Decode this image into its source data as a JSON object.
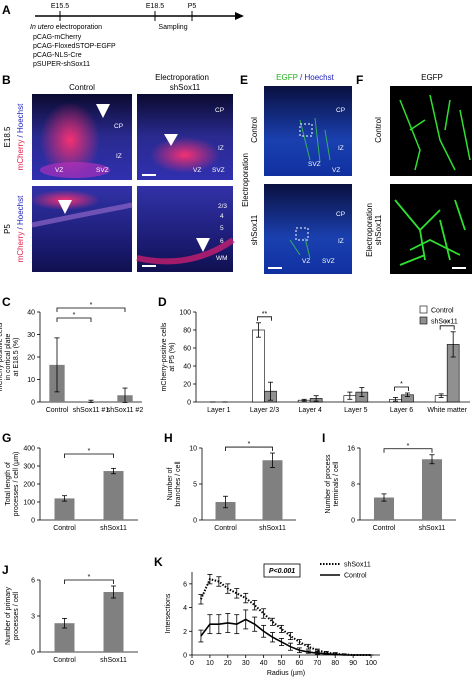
{
  "figure": {
    "panel_a": {
      "label": "A",
      "timepoints": [
        "E15.5",
        "E18.5",
        "P5"
      ],
      "sampling": "Sampling",
      "method_italic": "In utero",
      "method": "electroporation",
      "plasmids": [
        "pCAG-mCherry",
        "pCAG-FloxedSTOP-EGFP",
        "pCAG-NLS-Cre",
        "pSUPER-shSox11"
      ]
    },
    "panel_b": {
      "label": "B",
      "header": "Electroporation",
      "columns": [
        "Control",
        "shSox11"
      ],
      "rows": [
        "E18.5",
        "P5"
      ],
      "stain": [
        "mCherry",
        "/ Hoechst"
      ],
      "regions": [
        "CP",
        "IZ",
        "SVZ",
        "VZ"
      ],
      "layers": [
        "2/3",
        "4",
        "5",
        "6",
        "WM"
      ]
    },
    "panel_e": {
      "label": "E",
      "stain": [
        "EGFP",
        "/ Hoechst"
      ],
      "side": "Electroporation",
      "rows": [
        "Control",
        "shSox11"
      ],
      "regions": [
        "CP",
        "IZ",
        "SVZ",
        "VZ"
      ]
    },
    "panel_f": {
      "label": "F",
      "stain": "EGFP",
      "side": "Electroporation",
      "rows": [
        "Control",
        "shSox11"
      ]
    }
  },
  "chart_data": [
    {
      "type": "bar",
      "panel": "C",
      "ylabel": [
        "mCherry-positive cells",
        "in cortical plate",
        "at E18.5 (%)"
      ],
      "categories": [
        "Control",
        "shSox11 #1",
        "shSox11 #2"
      ],
      "values": [
        16.5,
        0.3,
        3
      ],
      "errors": [
        12,
        0.5,
        3.2
      ],
      "color": "#808080",
      "ylim": [
        0,
        40
      ],
      "yticks": [
        0,
        10,
        20,
        30,
        40
      ],
      "significance": [
        {
          "from": 0,
          "to": 1,
          "label": "*"
        },
        {
          "from": 0,
          "to": 2,
          "label": "*"
        }
      ]
    },
    {
      "type": "bar",
      "panel": "D",
      "ylabel": [
        "mCherry-positive cells",
        "at P5 (%)"
      ],
      "categories": [
        "Layer 1",
        "Layer 2/3",
        "Layer 4",
        "Layer 5",
        "Layer 6",
        "White matter"
      ],
      "series": [
        {
          "name": "Control",
          "color": "#ffffff",
          "values": [
            0,
            80,
            2,
            7,
            3,
            7
          ],
          "errors": [
            0,
            8,
            1,
            4,
            2,
            2
          ]
        },
        {
          "name": "shSox11",
          "color": "#909090",
          "values": [
            0,
            12,
            4,
            11,
            8,
            64
          ],
          "errors": [
            0,
            10,
            3,
            5,
            2,
            14
          ]
        }
      ],
      "ylim": [
        0,
        100
      ],
      "yticks": [
        0,
        20,
        40,
        60,
        80,
        100
      ],
      "significance": [
        {
          "from": 1,
          "to": 1,
          "label": "**"
        },
        {
          "from": 4,
          "to": 4,
          "label": "*"
        },
        {
          "from": 5,
          "to": 5,
          "label": "**"
        }
      ]
    },
    {
      "type": "bar",
      "panel": "G",
      "ylabel": [
        "Total length of",
        "processes / cell (µm)"
      ],
      "categories": [
        "Control",
        "shSox11"
      ],
      "values": [
        120,
        272
      ],
      "errors": [
        15,
        15
      ],
      "color": "#808080",
      "ylim": [
        0,
        400
      ],
      "yticks": [
        0,
        100,
        200,
        300,
        400
      ],
      "significance": [
        {
          "from": 0,
          "to": 1,
          "label": "*"
        }
      ]
    },
    {
      "type": "bar",
      "panel": "H",
      "ylabel": [
        "Number of",
        "branches / cell"
      ],
      "categories": [
        "Control",
        "shSox11"
      ],
      "values": [
        2.5,
        8.3
      ],
      "errors": [
        0.8,
        1.0
      ],
      "color": "#808080",
      "ylim": [
        0,
        10
      ],
      "yticks": [
        0,
        5,
        10
      ],
      "significance": [
        {
          "from": 0,
          "to": 1,
          "label": "*"
        }
      ]
    },
    {
      "type": "bar",
      "panel": "I",
      "ylabel": [
        "Number of process",
        "terminals / cell"
      ],
      "categories": [
        "Control",
        "shSox11"
      ],
      "values": [
        5,
        13.5
      ],
      "errors": [
        0.8,
        1.0
      ],
      "color": "#808080",
      "ylim": [
        0,
        16
      ],
      "yticks": [
        0,
        8,
        16
      ],
      "significance": [
        {
          "from": 0,
          "to": 1,
          "label": "*"
        }
      ]
    },
    {
      "type": "bar",
      "panel": "J",
      "ylabel": [
        "Number of primary",
        "processes / cell"
      ],
      "categories": [
        "Control",
        "shSox11"
      ],
      "values": [
        2.4,
        5.0
      ],
      "errors": [
        0.4,
        0.5
      ],
      "color": "#808080",
      "ylim": [
        0,
        6
      ],
      "yticks": [
        0,
        3,
        6
      ],
      "significance": [
        {
          "from": 0,
          "to": 1,
          "label": "*"
        }
      ]
    },
    {
      "type": "line",
      "panel": "K",
      "xlabel": "Radius (µm)",
      "ylabel": [
        "Intersections"
      ],
      "annotation": "P<0.001",
      "x": [
        5,
        10,
        15,
        20,
        25,
        30,
        35,
        40,
        45,
        50,
        55,
        60,
        65,
        70,
        75,
        80,
        85,
        90,
        95,
        100
      ],
      "series": [
        {
          "name": "shSox11",
          "color": "#000000",
          "linestyle": "dotted",
          "values": [
            4.7,
            6.4,
            6.2,
            5.6,
            5.2,
            4.8,
            4.2,
            3.5,
            2.8,
            2.2,
            1.6,
            1.1,
            0.7,
            0.4,
            0.2,
            0.1,
            0.05,
            0,
            0,
            0
          ],
          "errors": [
            0.4,
            0.4,
            0.4,
            0.4,
            0.4,
            0.4,
            0.4,
            0.4,
            0.3,
            0.3,
            0.3,
            0.2,
            0.2,
            0.1,
            0.1,
            0.1,
            0.05,
            0,
            0,
            0
          ]
        },
        {
          "name": "Control",
          "color": "#000000",
          "linestyle": "solid",
          "values": [
            1.6,
            2.6,
            2.6,
            2.7,
            2.6,
            3.0,
            2.6,
            2.0,
            1.5,
            1.1,
            0.7,
            0.4,
            0.25,
            0.15,
            0.1,
            0.05,
            0,
            0,
            0,
            0
          ],
          "errors": [
            0.5,
            0.8,
            0.8,
            0.8,
            0.8,
            0.8,
            0.6,
            0.5,
            0.4,
            0.3,
            0.3,
            0.2,
            0.1,
            0.1,
            0.05,
            0.05,
            0,
            0,
            0,
            0
          ]
        }
      ],
      "xlim": [
        0,
        105
      ],
      "xticks": [
        0,
        10,
        20,
        30,
        40,
        50,
        60,
        70,
        80,
        90,
        100
      ],
      "ylim": [
        0,
        7
      ],
      "yticks": [
        0,
        2,
        4,
        6
      ]
    }
  ]
}
